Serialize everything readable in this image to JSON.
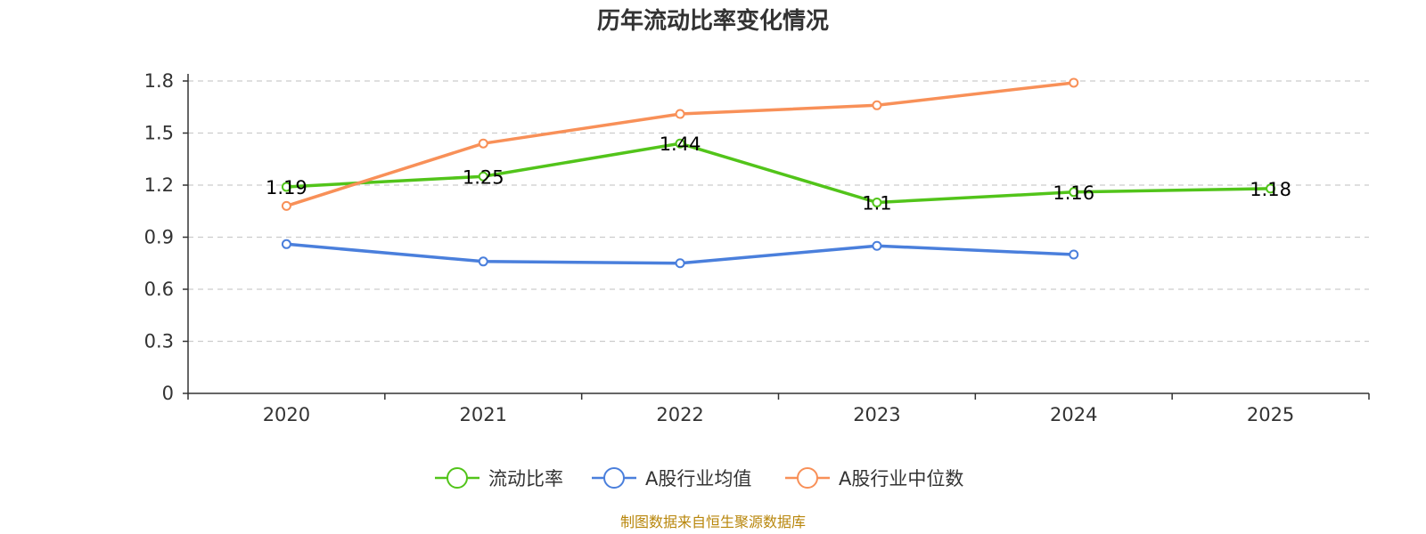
{
  "chart_data": {
    "type": "line",
    "title": "历年流动比率变化情况",
    "categories": [
      "2020",
      "2021",
      "2022",
      "2023",
      "2024",
      "2025"
    ],
    "ylim": [
      0,
      1.8
    ],
    "yticks": [
      0,
      0.3,
      0.6,
      0.9,
      1.2,
      1.5,
      1.8
    ],
    "ytick_labels": [
      "0",
      "0.3",
      "0.6",
      "0.9",
      "1.2",
      "1.5",
      "1.8"
    ],
    "grid": true,
    "legend_position": "bottom-center",
    "series": [
      {
        "name": "流动比率",
        "color": "#52c41a",
        "values": [
          1.19,
          1.25,
          1.44,
          1.1,
          1.16,
          1.18
        ],
        "labels": [
          "1.19",
          "1.25",
          "1.44",
          "1.1",
          "1.16",
          "1.18"
        ]
      },
      {
        "name": "A股行业均值",
        "color": "#4a7fdc",
        "values": [
          0.86,
          0.76,
          0.75,
          0.85,
          0.8,
          null
        ]
      },
      {
        "name": "A股行业中位数",
        "color": "#f89058",
        "values": [
          1.08,
          1.44,
          1.61,
          1.66,
          1.79,
          null
        ]
      }
    ]
  },
  "source_note": "制图数据来自恒生聚源数据库"
}
